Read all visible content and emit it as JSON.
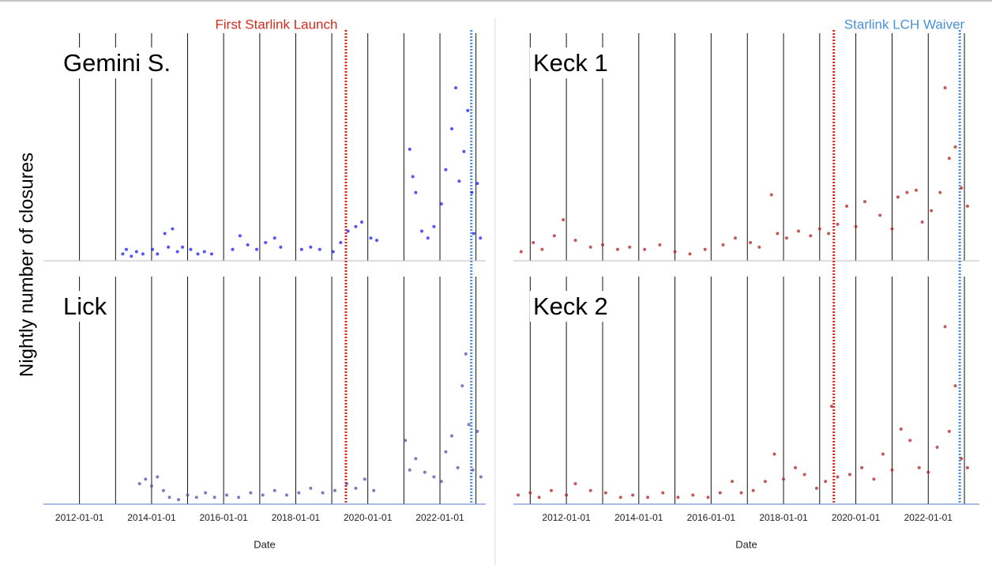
{
  "ylabel": "Nightly number of closures",
  "vlines": [
    {
      "label": "First Starlink Launch",
      "x": "2019-05-24",
      "color": "#d42a1e"
    },
    {
      "label": "Starlink LCH Waiver",
      "x": "2022-11-15",
      "color": "#4a90d9"
    }
  ],
  "chart_data": [
    {
      "type": "scatter",
      "title": "Gemini S.",
      "color": "#1a1aff",
      "xlim": [
        "2011-01-01",
        "2023-04-10"
      ],
      "ylim": [
        0,
        10
      ],
      "xgrid": [
        "2012-01-01",
        "2013-01-01",
        "2014-01-01",
        "2015-01-01",
        "2016-01-01",
        "2017-01-01",
        "2018-01-01",
        "2019-01-01",
        "2020-01-01",
        "2021-01-01",
        "2022-01-01",
        "2023-01-01"
      ],
      "x": [
        "2013-03-15",
        "2013-04-20",
        "2013-06-10",
        "2013-08-01",
        "2013-10-05",
        "2014-01-10",
        "2014-03-01",
        "2014-05-15",
        "2014-06-20",
        "2014-08-01",
        "2014-09-20",
        "2014-11-10",
        "2015-02-01",
        "2015-04-15",
        "2015-06-20",
        "2015-09-01",
        "2016-04-01",
        "2016-06-15",
        "2016-09-01",
        "2016-12-01",
        "2017-03-01",
        "2017-06-01",
        "2017-08-01",
        "2018-03-01",
        "2018-06-01",
        "2018-09-01",
        "2019-01-15",
        "2019-04-01",
        "2019-06-15",
        "2019-09-01",
        "2019-11-01",
        "2020-02-01",
        "2020-04-01",
        "2021-03-01",
        "2021-04-01",
        "2021-05-01",
        "2021-07-01",
        "2021-09-01",
        "2021-11-01",
        "2022-01-15",
        "2022-03-01",
        "2022-05-01",
        "2022-06-10",
        "2022-07-15",
        "2022-09-01",
        "2022-10-10",
        "2022-11-20",
        "2022-12-10",
        "2023-01-15",
        "2023-02-15"
      ],
      "values": [
        0.3,
        0.5,
        0.2,
        0.4,
        0.3,
        0.5,
        0.3,
        1.2,
        0.6,
        1.4,
        0.4,
        0.6,
        0.5,
        0.3,
        0.4,
        0.3,
        0.5,
        1.1,
        0.7,
        0.5,
        0.8,
        1.0,
        0.6,
        0.5,
        0.6,
        0.5,
        0.4,
        0.8,
        1.3,
        1.5,
        1.7,
        1.0,
        0.9,
        4.9,
        3.7,
        3.0,
        1.3,
        1.0,
        1.5,
        2.5,
        4.0,
        5.8,
        7.6,
        3.5,
        4.8,
        6.6,
        3.0,
        1.2,
        3.4,
        1.0
      ]
    },
    {
      "type": "scatter",
      "title": "Keck 1",
      "color": "#b22222",
      "xlim": [
        "2010-07-15",
        "2023-06-01"
      ],
      "ylim": [
        0,
        10
      ],
      "xgrid": [
        "2011-01-01",
        "2012-01-01",
        "2013-01-01",
        "2014-01-01",
        "2015-01-01",
        "2016-01-01",
        "2017-01-01",
        "2018-01-01",
        "2019-01-01",
        "2020-01-01",
        "2021-01-01",
        "2022-01-01",
        "2023-01-01"
      ],
      "x": [
        "2010-10-01",
        "2011-02-01",
        "2011-05-01",
        "2011-09-01",
        "2011-12-01",
        "2012-04-01",
        "2012-09-01",
        "2013-01-01",
        "2013-06-01",
        "2013-10-01",
        "2014-03-01",
        "2014-08-01",
        "2015-01-01",
        "2015-06-01",
        "2015-11-01",
        "2016-05-01",
        "2016-09-01",
        "2017-02-01",
        "2017-05-01",
        "2017-09-01",
        "2017-11-01",
        "2018-02-01",
        "2018-06-01",
        "2018-10-01",
        "2019-01-01",
        "2019-04-01",
        "2019-07-01",
        "2019-10-01",
        "2020-01-01",
        "2020-04-01",
        "2020-09-01",
        "2021-01-01",
        "2021-03-01",
        "2021-06-01",
        "2021-09-01",
        "2021-11-01",
        "2022-02-01",
        "2022-05-01",
        "2022-06-20",
        "2022-08-01",
        "2022-10-01",
        "2022-12-01",
        "2023-02-01"
      ],
      "values": [
        0.4,
        0.8,
        0.5,
        1.1,
        1.8,
        0.9,
        0.6,
        0.7,
        0.5,
        0.6,
        0.5,
        0.7,
        0.4,
        0.3,
        0.5,
        0.7,
        1.0,
        0.8,
        0.6,
        2.9,
        1.2,
        1.0,
        1.3,
        1.1,
        1.4,
        1.2,
        1.6,
        2.4,
        1.5,
        2.6,
        2.0,
        1.4,
        2.8,
        3.0,
        3.1,
        1.7,
        2.2,
        3.0,
        7.6,
        4.5,
        5.0,
        3.2,
        2.4
      ]
    },
    {
      "type": "scatter",
      "title": "Lick",
      "color": "#5b4aa8",
      "xlabel": "Date",
      "xlim": [
        "2011-01-01",
        "2023-04-10"
      ],
      "ylim": [
        0,
        10
      ],
      "xticks": [
        "2012-01-01",
        "2014-01-01",
        "2016-01-01",
        "2018-01-01",
        "2020-01-01",
        "2022-01-01"
      ],
      "xgrid": [
        "2012-01-01",
        "2013-01-01",
        "2014-01-01",
        "2015-01-01",
        "2016-01-01",
        "2017-01-01",
        "2018-01-01",
        "2019-01-01",
        "2020-01-01",
        "2021-01-01",
        "2022-01-01",
        "2023-01-01"
      ],
      "x": [
        "2013-09-01",
        "2013-11-01",
        "2014-01-01",
        "2014-03-01",
        "2014-05-01",
        "2014-07-01",
        "2014-10-01",
        "2015-01-01",
        "2015-04-01",
        "2015-07-01",
        "2015-10-01",
        "2016-02-01",
        "2016-06-01",
        "2016-10-01",
        "2017-02-01",
        "2017-06-01",
        "2017-10-01",
        "2018-02-01",
        "2018-06-01",
        "2018-10-01",
        "2019-02-01",
        "2019-06-01",
        "2019-09-01",
        "2019-12-01",
        "2020-03-01",
        "2021-01-15",
        "2021-03-01",
        "2021-05-01",
        "2021-08-01",
        "2021-11-01",
        "2022-01-15",
        "2022-03-01",
        "2022-05-01",
        "2022-07-01",
        "2022-08-15",
        "2022-09-20",
        "2022-10-20",
        "2022-12-01",
        "2023-01-15",
        "2023-02-20"
      ],
      "values": [
        0.9,
        1.1,
        0.8,
        1.2,
        0.6,
        0.3,
        0.2,
        0.4,
        0.3,
        0.5,
        0.3,
        0.4,
        0.3,
        0.5,
        0.4,
        0.6,
        0.4,
        0.5,
        0.7,
        0.5,
        0.6,
        0.9,
        0.7,
        1.1,
        0.6,
        2.8,
        1.5,
        2.0,
        1.4,
        1.2,
        1.0,
        2.3,
        3.0,
        1.6,
        5.2,
        6.6,
        3.5,
        1.5,
        3.2,
        1.2
      ]
    },
    {
      "type": "scatter",
      "title": "Keck 2",
      "color": "#b22222",
      "xlabel": "Date",
      "xlim": [
        "2010-07-15",
        "2023-06-01"
      ],
      "ylim": [
        0,
        10
      ],
      "xticks": [
        "2012-01-01",
        "2014-01-01",
        "2016-01-01",
        "2018-01-01",
        "2020-01-01",
        "2022-01-01"
      ],
      "xgrid": [
        "2011-01-01",
        "2012-01-01",
        "2013-01-01",
        "2014-01-01",
        "2015-01-01",
        "2016-01-01",
        "2017-01-01",
        "2018-01-01",
        "2019-01-01",
        "2020-01-01",
        "2021-01-01",
        "2022-01-01",
        "2023-01-01"
      ],
      "x": [
        "2010-09-01",
        "2011-01-01",
        "2011-04-01",
        "2011-08-01",
        "2012-01-01",
        "2012-04-01",
        "2012-09-01",
        "2013-02-01",
        "2013-07-01",
        "2013-11-01",
        "2014-04-01",
        "2014-09-01",
        "2015-02-01",
        "2015-07-01",
        "2015-12-01",
        "2016-04-01",
        "2016-08-01",
        "2016-11-01",
        "2017-03-01",
        "2017-07-01",
        "2017-10-01",
        "2018-01-01",
        "2018-05-01",
        "2018-08-01",
        "2018-12-01",
        "2019-03-01",
        "2019-05-01",
        "2019-07-01",
        "2019-11-01",
        "2020-03-01",
        "2020-07-01",
        "2020-10-01",
        "2021-01-01",
        "2021-04-01",
        "2021-07-01",
        "2021-10-01",
        "2022-01-01",
        "2022-04-01",
        "2022-06-20",
        "2022-08-01",
        "2022-10-01",
        "2022-12-01",
        "2023-02-01"
      ],
      "values": [
        0.4,
        0.5,
        0.3,
        0.6,
        0.4,
        0.9,
        0.6,
        0.5,
        0.3,
        0.4,
        0.3,
        0.5,
        0.3,
        0.4,
        0.3,
        0.5,
        1.0,
        0.5,
        0.6,
        1.0,
        2.2,
        1.1,
        1.6,
        1.3,
        0.7,
        1.0,
        4.3,
        1.2,
        1.3,
        1.6,
        1.1,
        2.2,
        1.5,
        3.3,
        2.8,
        1.6,
        1.4,
        2.5,
        7.8,
        3.2,
        5.2,
        2.0,
        1.6
      ]
    }
  ]
}
